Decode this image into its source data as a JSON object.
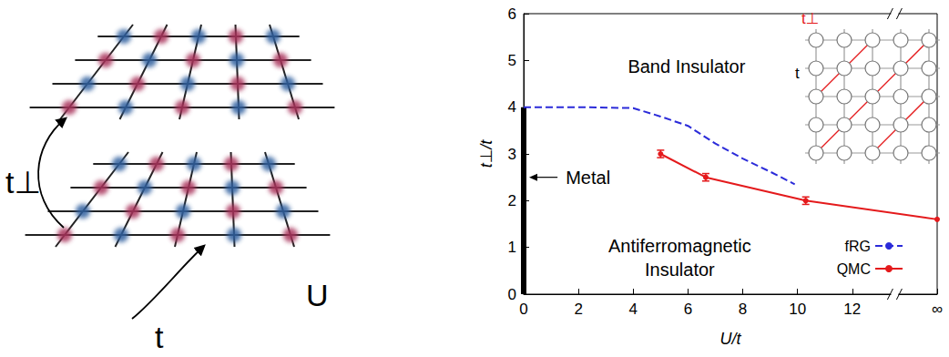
{
  "chart_data": {
    "type": "line",
    "x_label": "U/t",
    "y_label": "t⊥/t",
    "xlim": [
      0,
      15.1
    ],
    "xticks": [
      0,
      2,
      4,
      6,
      8,
      10,
      12,
      {
        "value": 15.1,
        "label": "∞"
      }
    ],
    "ylim": [
      0,
      6
    ],
    "yticks": [
      0,
      1,
      2,
      3,
      4,
      5,
      6
    ],
    "grid": false,
    "legend": "lower right",
    "series": [
      {
        "name": "fRG",
        "color": "#2b2bd9",
        "line_style": "dashed",
        "marker": "none",
        "x": [
          0,
          2,
          4,
          5,
          6,
          7,
          8,
          9,
          9.9
        ],
        "values": [
          4.0,
          4.0,
          3.98,
          3.8,
          3.6,
          3.22,
          2.9,
          2.62,
          2.35
        ]
      },
      {
        "name": "QMC",
        "color": "#e41a1c",
        "line_style": "solid",
        "marker": "circle",
        "x": [
          5,
          6.65,
          10.3,
          15.1
        ],
        "values": [
          3.0,
          2.5,
          2.0,
          1.6
        ],
        "errors": [
          0.08,
          0.08,
          0.08,
          null
        ]
      }
    ],
    "metal": {
      "color": "#000000",
      "x": [
        0,
        0
      ],
      "values": [
        0,
        4
      ]
    },
    "annotations": [
      {
        "text": "Band Insulator",
        "x": 5.95,
        "y": 4.87
      },
      {
        "text": "Antiferromagnetic Insulator",
        "x": 5.7,
        "y": 0.78
      },
      {
        "text": "Metal",
        "x": 2.35,
        "y": 2.5,
        "arrow": true
      }
    ],
    "inset": {
      "interlayer_label": "t⊥",
      "intralayer_label": "t",
      "interlayer_color": "#e41a1c"
    }
  },
  "illustration": {
    "interlayer_label": "t⊥",
    "intralayer_label": "t",
    "interaction_label": "U"
  }
}
